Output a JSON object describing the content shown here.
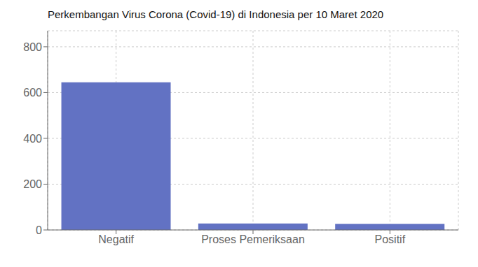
{
  "chart_data": {
    "type": "bar",
    "title": "Perkembangan Virus Corona (Covid-19) di Indonesia per 10 Maret 2020",
    "categories": [
      "Negatif",
      "Proses Pemeriksaan",
      "Positif"
    ],
    "values": [
      645,
      28,
      27
    ],
    "color": "#6272c3",
    "ylim": [
      0,
      870
    ],
    "yticks": [
      0,
      200,
      400,
      600,
      800
    ],
    "grid": true
  }
}
